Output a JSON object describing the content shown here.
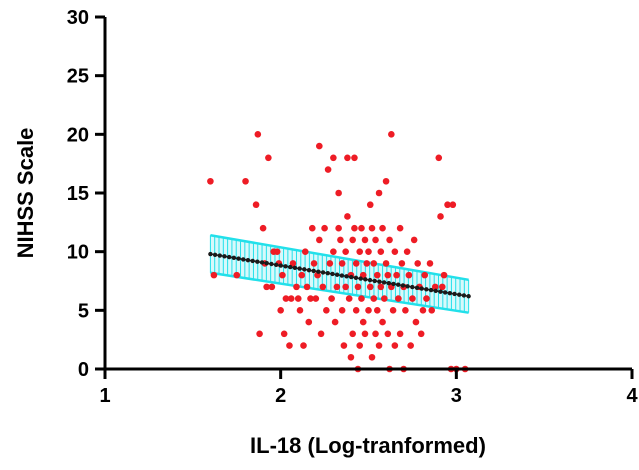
{
  "chart_data": {
    "type": "scatter",
    "title": "",
    "xlabel": "IL-18 (Log-tranformed)",
    "ylabel": "NIHSS Scale",
    "xlim": [
      1,
      4
    ],
    "ylim": [
      0,
      30
    ],
    "xticks": [
      "1",
      "2",
      "3",
      "4"
    ],
    "yticks": [
      "0",
      "5",
      "10",
      "15",
      "20",
      "25",
      "30"
    ],
    "grid": false,
    "legend": "none",
    "colors": {
      "points": "#ee1c25",
      "fit_line": "#1a1a1a",
      "confidence_band": "#22e0ea",
      "axis": "#000000"
    },
    "series": [
      {
        "type": "scatter",
        "points": [
          [
            1.6,
            16
          ],
          [
            1.62,
            8
          ],
          [
            1.75,
            8
          ],
          [
            1.8,
            16
          ],
          [
            1.86,
            14
          ],
          [
            1.87,
            20
          ],
          [
            1.88,
            3
          ],
          [
            1.9,
            12
          ],
          [
            1.91,
            9
          ],
          [
            1.92,
            7
          ],
          [
            1.93,
            18
          ],
          [
            1.95,
            7
          ],
          [
            1.96,
            10
          ],
          [
            1.98,
            10
          ],
          [
            1.99,
            9
          ],
          [
            2.0,
            5
          ],
          [
            2.01,
            8
          ],
          [
            2.02,
            3
          ],
          [
            2.03,
            6
          ],
          [
            2.05,
            2
          ],
          [
            2.06,
            6
          ],
          [
            2.07,
            9
          ],
          [
            2.09,
            7
          ],
          [
            2.1,
            6
          ],
          [
            2.11,
            5
          ],
          [
            2.12,
            8
          ],
          [
            2.13,
            2
          ],
          [
            2.14,
            10
          ],
          [
            2.15,
            7
          ],
          [
            2.16,
            4
          ],
          [
            2.17,
            6
          ],
          [
            2.18,
            12
          ],
          [
            2.19,
            9
          ],
          [
            2.2,
            6
          ],
          [
            2.21,
            8
          ],
          [
            2.22,
            11
          ],
          [
            2.22,
            19
          ],
          [
            2.23,
            3
          ],
          [
            2.24,
            7
          ],
          [
            2.25,
            12
          ],
          [
            2.26,
            5
          ],
          [
            2.27,
            17
          ],
          [
            2.28,
            9
          ],
          [
            2.29,
            6
          ],
          [
            2.3,
            18
          ],
          [
            2.3,
            10
          ],
          [
            2.31,
            4
          ],
          [
            2.32,
            7
          ],
          [
            2.33,
            12
          ],
          [
            2.33,
            15
          ],
          [
            2.34,
            11
          ],
          [
            2.35,
            5
          ],
          [
            2.35,
            9
          ],
          [
            2.36,
            2
          ],
          [
            2.37,
            7
          ],
          [
            2.37,
            10
          ],
          [
            2.38,
            13
          ],
          [
            2.38,
            18
          ],
          [
            2.39,
            6
          ],
          [
            2.4,
            1
          ],
          [
            2.4,
            8
          ],
          [
            2.41,
            11
          ],
          [
            2.41,
            3
          ],
          [
            2.42,
            12
          ],
          [
            2.42,
            18
          ],
          [
            2.43,
            5
          ],
          [
            2.43,
            9
          ],
          [
            2.44,
            0
          ],
          [
            2.44,
            7
          ],
          [
            2.45,
            10
          ],
          [
            2.45,
            2
          ],
          [
            2.46,
            6
          ],
          [
            2.46,
            12
          ],
          [
            2.47,
            4
          ],
          [
            2.47,
            8
          ],
          [
            2.48,
            11
          ],
          [
            2.48,
            3
          ],
          [
            2.49,
            9
          ],
          [
            2.5,
            5
          ],
          [
            2.5,
            10
          ],
          [
            2.51,
            7
          ],
          [
            2.51,
            14
          ],
          [
            2.52,
            1
          ],
          [
            2.52,
            12
          ],
          [
            2.53,
            6
          ],
          [
            2.53,
            9
          ],
          [
            2.54,
            3
          ],
          [
            2.54,
            11
          ],
          [
            2.55,
            8
          ],
          [
            2.55,
            5
          ],
          [
            2.56,
            15
          ],
          [
            2.56,
            2
          ],
          [
            2.57,
            10
          ],
          [
            2.57,
            7
          ],
          [
            2.58,
            12
          ],
          [
            2.58,
            4
          ],
          [
            2.59,
            6
          ],
          [
            2.6,
            9
          ],
          [
            2.6,
            16
          ],
          [
            2.61,
            3
          ],
          [
            2.61,
            8
          ],
          [
            2.62,
            11
          ],
          [
            2.62,
            0
          ],
          [
            2.63,
            20
          ],
          [
            2.63,
            7
          ],
          [
            2.64,
            5
          ],
          [
            2.65,
            10
          ],
          [
            2.65,
            2
          ],
          [
            2.66,
            8
          ],
          [
            2.67,
            6
          ],
          [
            2.68,
            12
          ],
          [
            2.68,
            3
          ],
          [
            2.69,
            9
          ],
          [
            2.7,
            0
          ],
          [
            2.7,
            7
          ],
          [
            2.71,
            5
          ],
          [
            2.72,
            10
          ],
          [
            2.73,
            8
          ],
          [
            2.74,
            2
          ],
          [
            2.75,
            6
          ],
          [
            2.76,
            11
          ],
          [
            2.77,
            4
          ],
          [
            2.78,
            9
          ],
          [
            2.79,
            7
          ],
          [
            2.8,
            3
          ],
          [
            2.81,
            5
          ],
          [
            2.82,
            8
          ],
          [
            2.83,
            6
          ],
          [
            2.85,
            9
          ],
          [
            2.86,
            5
          ],
          [
            2.88,
            7
          ],
          [
            2.9,
            18
          ],
          [
            2.91,
            13
          ],
          [
            2.92,
            7
          ],
          [
            2.93,
            8
          ],
          [
            2.95,
            14
          ],
          [
            2.97,
            0
          ],
          [
            2.98,
            14
          ],
          [
            3.0,
            0
          ],
          [
            3.05,
            0
          ]
        ]
      },
      {
        "type": "line",
        "name": "",
        "x": [
          1.6,
          3.07
        ],
        "y": [
          9.8,
          6.2
        ]
      },
      {
        "type": "band",
        "x": [
          1.6,
          3.07
        ],
        "upper": [
          11.4,
          7.6
        ],
        "lower": [
          8.2,
          4.8
        ]
      }
    ]
  }
}
